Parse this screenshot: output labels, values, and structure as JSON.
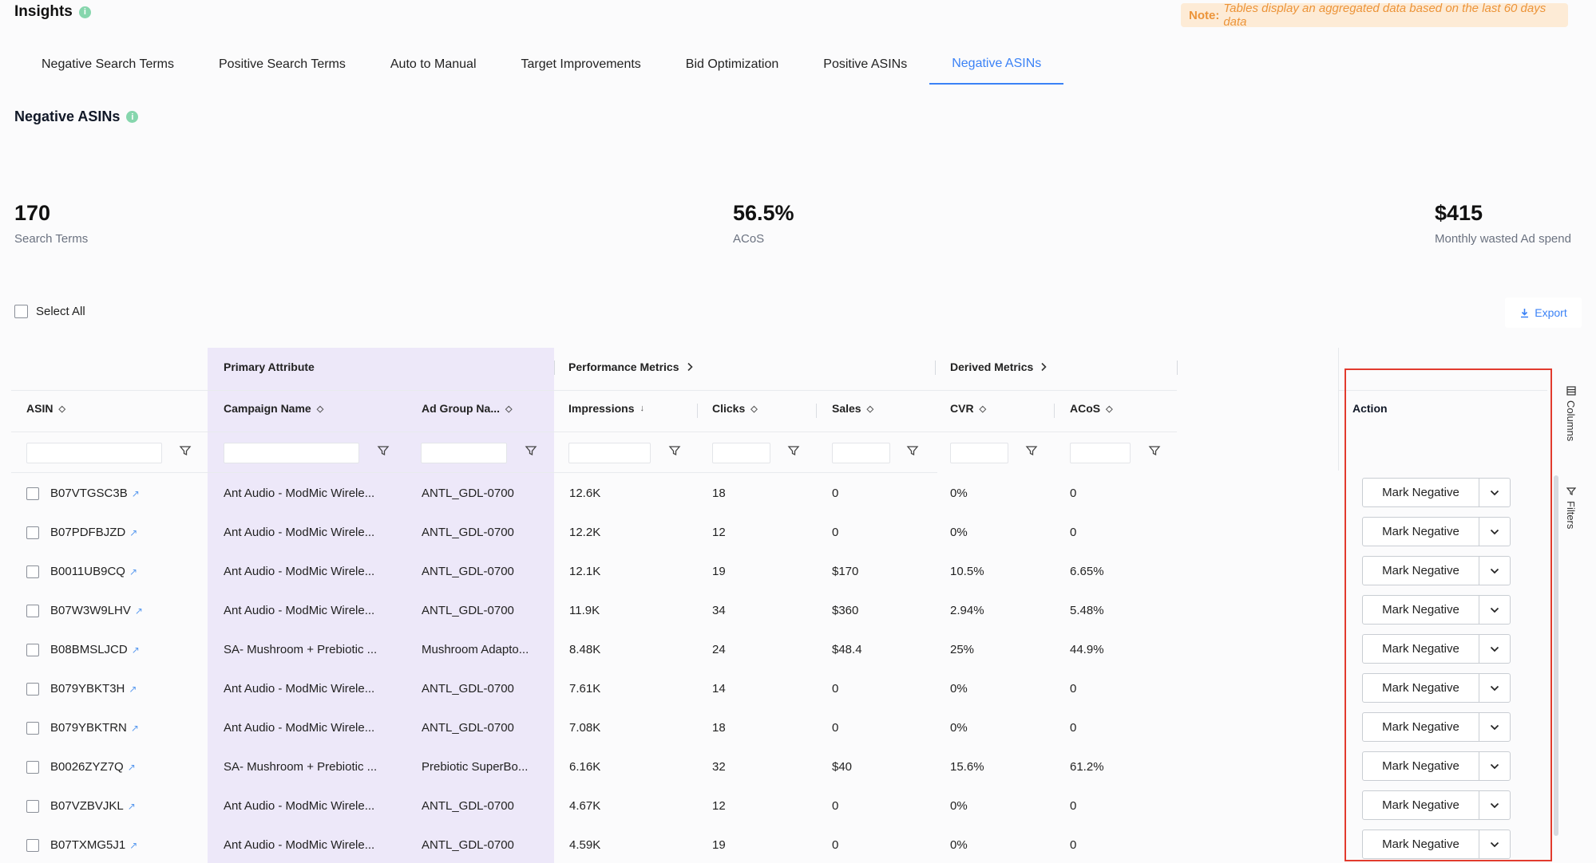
{
  "header": {
    "title": "Insights",
    "info": "i",
    "note_prefix": "Note:",
    "note_text": "Tables display an aggregated data based on the last 60 days data"
  },
  "tabs": [
    "Negative Search Terms",
    "Positive Search Terms",
    "Auto to Manual",
    "Target Improvements",
    "Bid Optimization",
    "Positive ASINs",
    "Negative ASINs"
  ],
  "active_tab": "Negative ASINs",
  "section": {
    "title": "Negative ASINs"
  },
  "stats": [
    {
      "value": "170",
      "label": "Search Terms"
    },
    {
      "value": "56.5%",
      "label": "ACoS"
    },
    {
      "value": "$415",
      "label": "Monthly wasted Ad spend"
    }
  ],
  "toolbar": {
    "select_all": "Select All",
    "export": "Export"
  },
  "groups": {
    "primary": "Primary Attribute",
    "performance": "Performance Metrics",
    "derived": "Derived Metrics"
  },
  "columns": {
    "asin": "ASIN",
    "campaign": "Campaign Name",
    "adgroup": "Ad Group Na...",
    "impressions": "Impressions",
    "clicks": "Clicks",
    "sales": "Sales",
    "cvr": "CVR",
    "acos": "ACoS",
    "action": "Action"
  },
  "rows": [
    {
      "asin": "B07VTGSC3B",
      "campaign": "Ant Audio - ModMic Wirele...",
      "adgroup": "ANTL_GDL-0700",
      "impressions": "12.6K",
      "clicks": "18",
      "sales": "0",
      "cvr": "0%",
      "acos": "0"
    },
    {
      "asin": "B07PDFBJZD",
      "campaign": "Ant Audio - ModMic Wirele...",
      "adgroup": "ANTL_GDL-0700",
      "impressions": "12.2K",
      "clicks": "12",
      "sales": "0",
      "cvr": "0%",
      "acos": "0"
    },
    {
      "asin": "B0011UB9CQ",
      "campaign": "Ant Audio - ModMic Wirele...",
      "adgroup": "ANTL_GDL-0700",
      "impressions": "12.1K",
      "clicks": "19",
      "sales": "$170",
      "cvr": "10.5%",
      "acos": "6.65%"
    },
    {
      "asin": "B07W3W9LHV",
      "campaign": "Ant Audio - ModMic Wirele...",
      "adgroup": "ANTL_GDL-0700",
      "impressions": "11.9K",
      "clicks": "34",
      "sales": "$360",
      "cvr": "2.94%",
      "acos": "5.48%"
    },
    {
      "asin": "B08BMSLJCD",
      "campaign": "SA- Mushroom + Prebiotic ...",
      "adgroup": "Mushroom Adapto...",
      "impressions": "8.48K",
      "clicks": "24",
      "sales": "$48.4",
      "cvr": "25%",
      "acos": "44.9%"
    },
    {
      "asin": "B079YBKT3H",
      "campaign": "Ant Audio - ModMic Wirele...",
      "adgroup": "ANTL_GDL-0700",
      "impressions": "7.61K",
      "clicks": "14",
      "sales": "0",
      "cvr": "0%",
      "acos": "0"
    },
    {
      "asin": "B079YBKTRN",
      "campaign": "Ant Audio - ModMic Wirele...",
      "adgroup": "ANTL_GDL-0700",
      "impressions": "7.08K",
      "clicks": "18",
      "sales": "0",
      "cvr": "0%",
      "acos": "0"
    },
    {
      "asin": "B0026ZYZ7Q",
      "campaign": "SA- Mushroom + Prebiotic ...",
      "adgroup": "Prebiotic SuperBo...",
      "impressions": "6.16K",
      "clicks": "32",
      "sales": "$40",
      "cvr": "15.6%",
      "acos": "61.2%"
    },
    {
      "asin": "B07VZBVJKL",
      "campaign": "Ant Audio - ModMic Wirele...",
      "adgroup": "ANTL_GDL-0700",
      "impressions": "4.67K",
      "clicks": "12",
      "sales": "0",
      "cvr": "0%",
      "acos": "0"
    },
    {
      "asin": "B07TXMG5J1",
      "campaign": "Ant Audio - ModMic Wirele...",
      "adgroup": "ANTL_GDL-0700",
      "impressions": "4.59K",
      "clicks": "19",
      "sales": "0",
      "cvr": "0%",
      "acos": "0"
    }
  ],
  "action_label": "Mark Negative",
  "side_panels": {
    "columns": "Columns",
    "filters": "Filters"
  },
  "colors": {
    "accent": "#3b82f6",
    "highlight_border": "#e23b2e",
    "primary_band": "#ede8f9",
    "note_bg": "#fdebd6",
    "note_text": "#ec9439"
  }
}
